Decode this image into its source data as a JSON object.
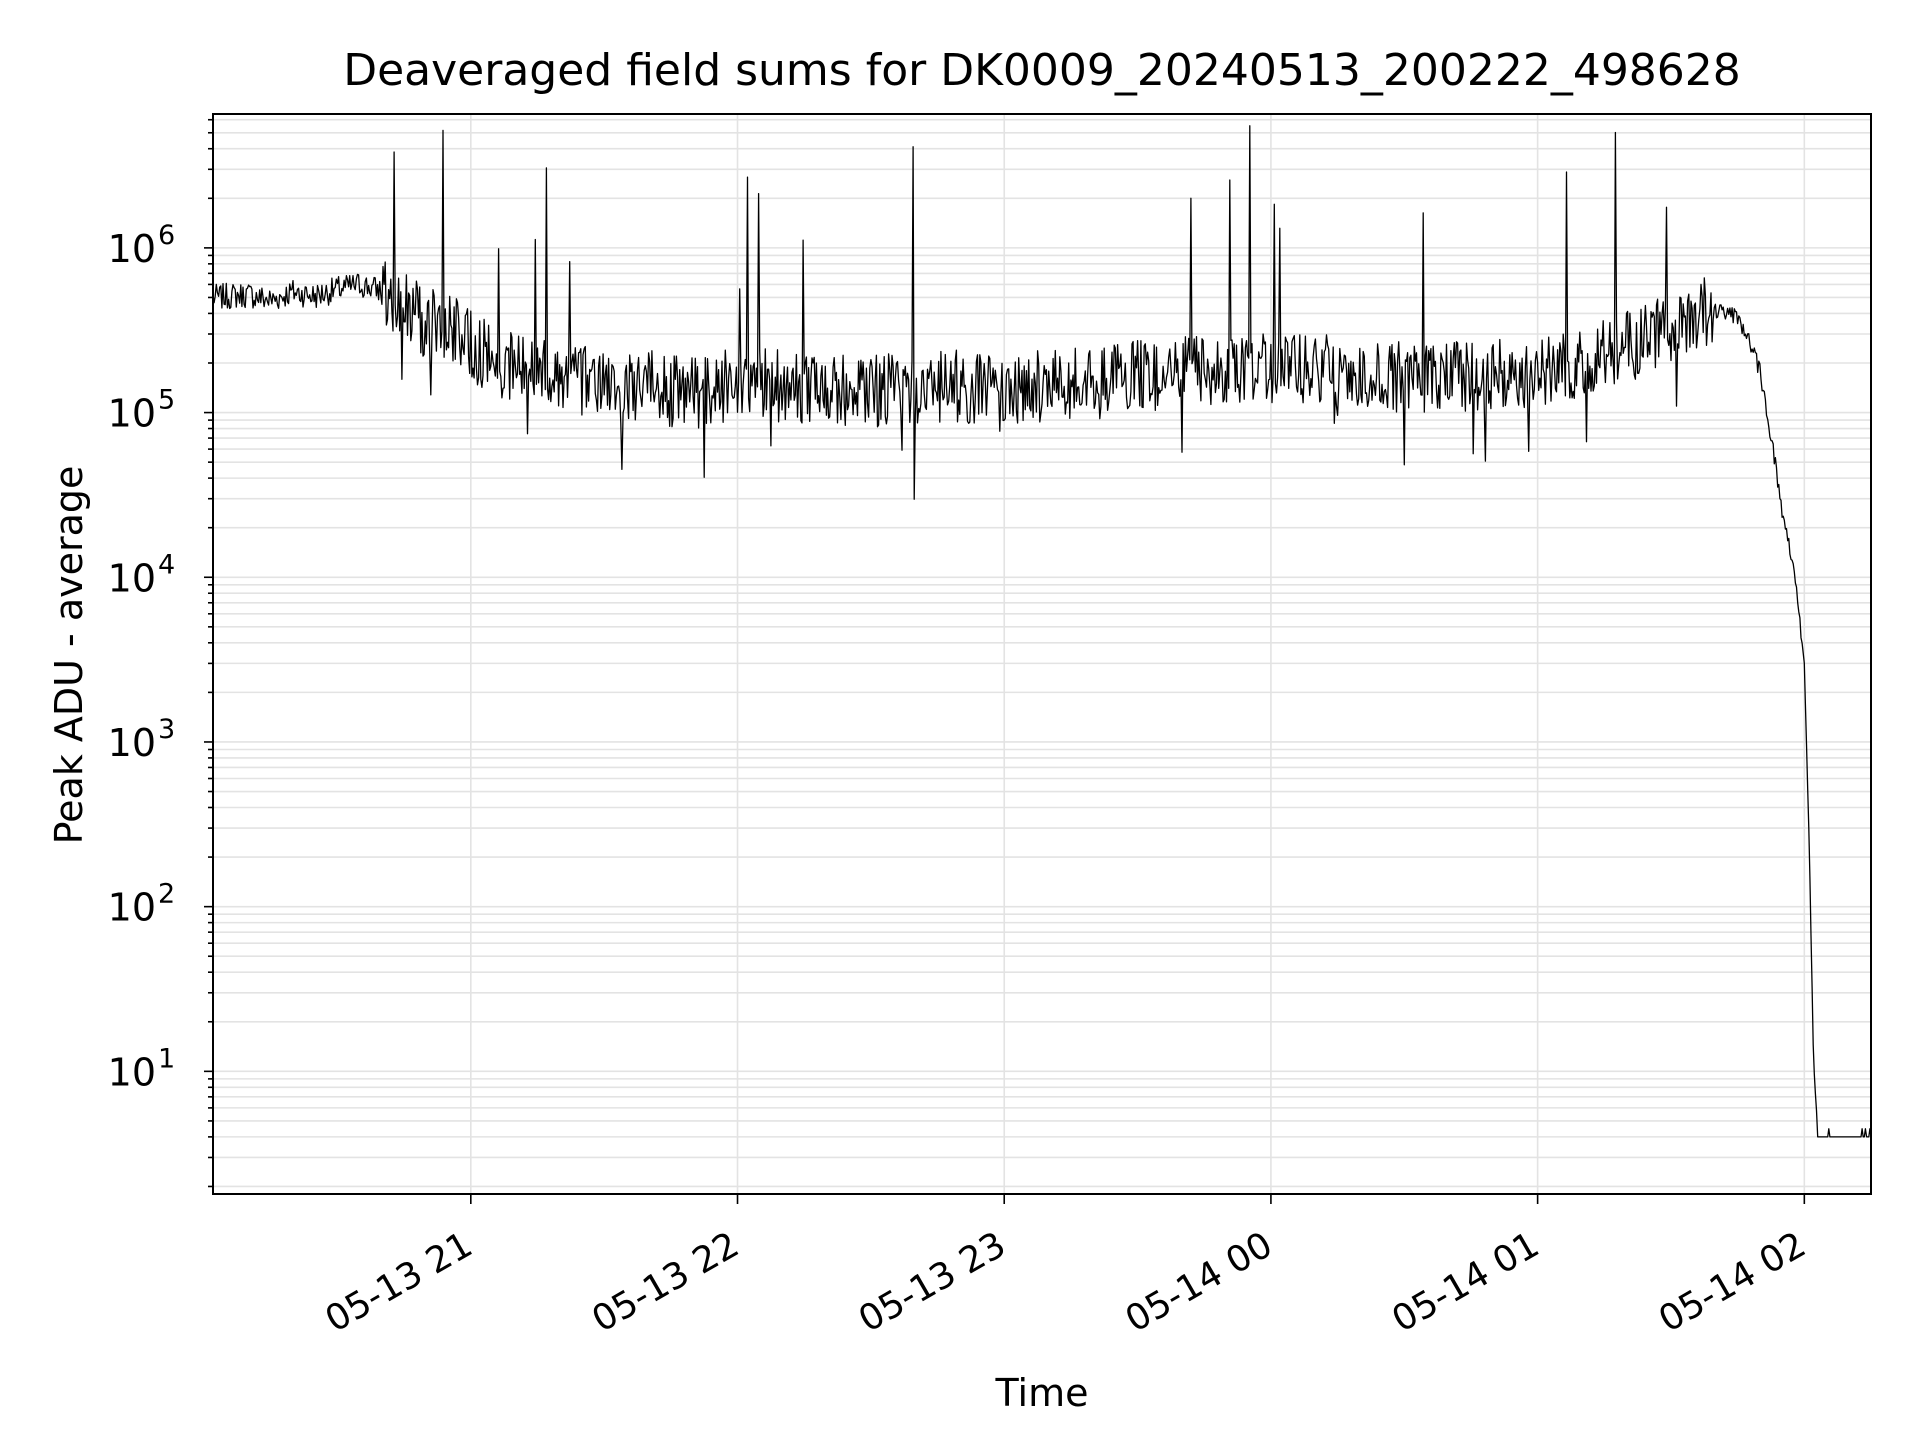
{
  "chart_data": {
    "type": "line",
    "title": "Deaveraged field sums for DK0009_20240513_200222_498628",
    "xlabel": "Time",
    "ylabel": "Peak ADU - average",
    "yscale": "log",
    "grid": true,
    "x_ticks": [
      "05-13 21",
      "05-13 22",
      "05-13 23",
      "05-14 00",
      "05-14 01",
      "05-14 02"
    ],
    "y_ticks": [
      {
        "base": "10",
        "exp": "1",
        "value": 10
      },
      {
        "base": "10",
        "exp": "2",
        "value": 100
      },
      {
        "base": "10",
        "exp": "3",
        "value": 1000
      },
      {
        "base": "10",
        "exp": "4",
        "value": 10000
      },
      {
        "base": "10",
        "exp": "5",
        "value": 100000
      },
      {
        "base": "10",
        "exp": "6",
        "value": 1000000
      }
    ],
    "xlim": [
      "2024-05-13 20:02",
      "2024-05-14 02:15"
    ],
    "ylim": [
      1.8,
      6500000
    ],
    "line_color": "#000000",
    "series": [
      {
        "points": [
          [
            "2024-05-13 20:02",
            500000
          ],
          [
            "2024-05-13 20:10",
            520000
          ],
          [
            "2024-05-13 20:15",
            480000
          ],
          [
            "2024-05-13 20:20",
            540000
          ],
          [
            "2024-05-13 20:25",
            510000
          ],
          [
            "2024-05-13 20:30",
            560000
          ],
          [
            "2024-05-13 20:35",
            600000
          ],
          [
            "2024-05-13 20:40",
            550000
          ],
          [
            "2024-05-13 20:45",
            430000
          ],
          [
            "2024-05-13 20:50",
            350000
          ],
          [
            "2024-05-13 20:55",
            320000
          ],
          [
            "2024-05-13 21:00",
            260000
          ],
          [
            "2024-05-13 21:05",
            210000
          ],
          [
            "2024-05-13 21:10",
            190000
          ],
          [
            "2024-05-13 21:15",
            180000
          ],
          [
            "2024-05-13 21:20",
            170000
          ],
          [
            "2024-05-13 21:25",
            160000
          ],
          [
            "2024-05-13 21:30",
            150000
          ],
          [
            "2024-05-13 21:35",
            140000
          ],
          [
            "2024-05-13 21:40",
            145000
          ],
          [
            "2024-05-13 21:45",
            135000
          ],
          [
            "2024-05-13 21:50",
            130000
          ],
          [
            "2024-05-13 21:55",
            140000
          ],
          [
            "2024-05-13 22:00",
            150000
          ],
          [
            "2024-05-13 22:10",
            145000
          ],
          [
            "2024-05-13 22:20",
            140000
          ],
          [
            "2024-05-13 22:30",
            135000
          ],
          [
            "2024-05-13 22:40",
            140000
          ],
          [
            "2024-05-13 22:50",
            145000
          ],
          [
            "2024-05-13 23:00",
            140000
          ],
          [
            "2024-05-13 23:10",
            145000
          ],
          [
            "2024-05-13 23:20",
            150000
          ],
          [
            "2024-05-13 23:30",
            165000
          ],
          [
            "2024-05-13 23:40",
            175000
          ],
          [
            "2024-05-13 23:50",
            180000
          ],
          [
            "2024-05-14 00:00",
            185000
          ],
          [
            "2024-05-14 00:10",
            180000
          ],
          [
            "2024-05-14 00:20",
            175000
          ],
          [
            "2024-05-14 00:30",
            165000
          ],
          [
            "2024-05-14 00:40",
            165000
          ],
          [
            "2024-05-14 00:50",
            170000
          ],
          [
            "2024-05-14 01:00",
            180000
          ],
          [
            "2024-05-14 01:10",
            200000
          ],
          [
            "2024-05-14 01:20",
            260000
          ],
          [
            "2024-05-14 01:30",
            320000
          ],
          [
            "2024-05-14 01:35",
            380000
          ],
          [
            "2024-05-14 01:40",
            420000
          ],
          [
            "2024-05-14 01:45",
            380000
          ],
          [
            "2024-05-14 01:47",
            300000
          ],
          [
            "2024-05-14 01:50",
            180000
          ],
          [
            "2024-05-14 01:53",
            60000
          ],
          [
            "2024-05-14 01:55",
            25000
          ],
          [
            "2024-05-14 01:58",
            10000
          ],
          [
            "2024-05-14 02:00",
            3000
          ],
          [
            "2024-05-14 02:01",
            300
          ],
          [
            "2024-05-14 02:02",
            15
          ],
          [
            "2024-05-14 02:03",
            4
          ],
          [
            "2024-05-14 02:15",
            4
          ]
        ]
      }
    ]
  }
}
